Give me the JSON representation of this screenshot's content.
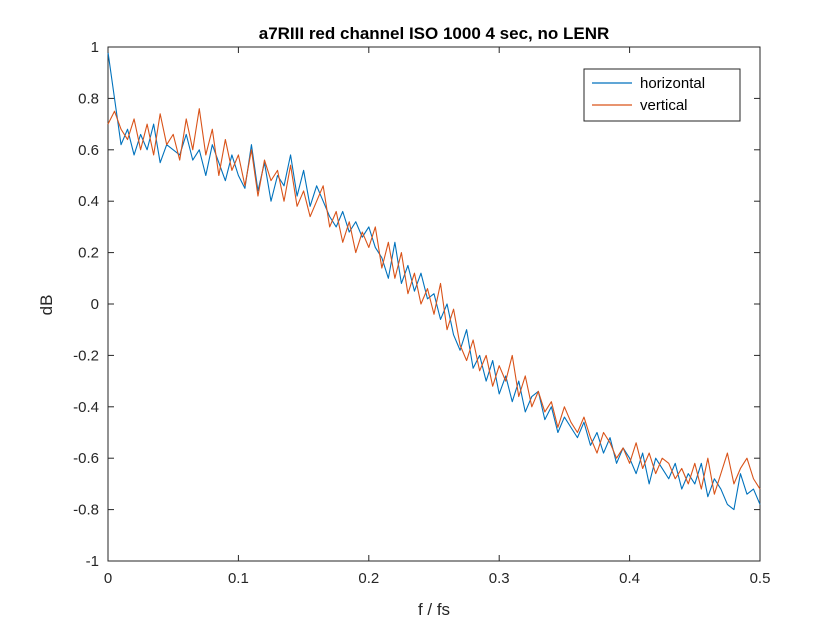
{
  "chart_data": {
    "type": "line",
    "title": "a7RIII red channel ISO 1000 4 sec, no LENR",
    "xlabel": "f / fs",
    "ylabel": "dB",
    "xlim": [
      0,
      0.5
    ],
    "ylim": [
      -1,
      1
    ],
    "xticks": [
      0,
      0.1,
      0.2,
      0.3,
      0.4,
      0.5
    ],
    "xtick_labels": [
      "0",
      "0.1",
      "0.2",
      "0.3",
      "0.4",
      "0.5"
    ],
    "yticks": [
      -1,
      -0.8,
      -0.6,
      -0.4,
      -0.2,
      0,
      0.2,
      0.4,
      0.6,
      0.8,
      1
    ],
    "ytick_labels": [
      "-1",
      "-0.8",
      "-0.6",
      "-0.4",
      "-0.2",
      "0",
      "0.2",
      "0.4",
      "0.6",
      "0.8",
      "1"
    ],
    "grid": false,
    "legend_position": "top-right",
    "x": [
      0,
      0.005,
      0.01,
      0.015,
      0.02,
      0.025,
      0.03,
      0.035,
      0.04,
      0.045,
      0.05,
      0.055,
      0.06,
      0.065,
      0.07,
      0.075,
      0.08,
      0.085,
      0.09,
      0.095,
      0.1,
      0.105,
      0.11,
      0.115,
      0.12,
      0.125,
      0.13,
      0.135,
      0.14,
      0.145,
      0.15,
      0.155,
      0.16,
      0.165,
      0.17,
      0.175,
      0.18,
      0.185,
      0.19,
      0.195,
      0.2,
      0.205,
      0.21,
      0.215,
      0.22,
      0.225,
      0.23,
      0.235,
      0.24,
      0.245,
      0.25,
      0.255,
      0.26,
      0.265,
      0.27,
      0.275,
      0.28,
      0.285,
      0.29,
      0.295,
      0.3,
      0.305,
      0.31,
      0.315,
      0.32,
      0.325,
      0.33,
      0.335,
      0.34,
      0.345,
      0.35,
      0.355,
      0.36,
      0.365,
      0.37,
      0.375,
      0.38,
      0.385,
      0.39,
      0.395,
      0.4,
      0.405,
      0.41,
      0.415,
      0.42,
      0.425,
      0.43,
      0.435,
      0.44,
      0.445,
      0.45,
      0.455,
      0.46,
      0.465,
      0.47,
      0.475,
      0.48,
      0.485,
      0.49,
      0.495,
      0.5
    ],
    "series": [
      {
        "name": "horizontal",
        "color": "#0072BD",
        "values": [
          0.98,
          0.8,
          0.62,
          0.68,
          0.58,
          0.66,
          0.6,
          0.7,
          0.55,
          0.62,
          0.6,
          0.58,
          0.66,
          0.56,
          0.6,
          0.5,
          0.62,
          0.55,
          0.48,
          0.58,
          0.5,
          0.45,
          0.62,
          0.44,
          0.55,
          0.4,
          0.5,
          0.46,
          0.58,
          0.42,
          0.52,
          0.38,
          0.46,
          0.4,
          0.34,
          0.3,
          0.36,
          0.28,
          0.32,
          0.26,
          0.3,
          0.22,
          0.18,
          0.1,
          0.24,
          0.08,
          0.15,
          0.05,
          0.12,
          0.02,
          0.04,
          -0.06,
          0.0,
          -0.12,
          -0.18,
          -0.1,
          -0.25,
          -0.2,
          -0.3,
          -0.22,
          -0.35,
          -0.28,
          -0.38,
          -0.3,
          -0.42,
          -0.36,
          -0.34,
          -0.45,
          -0.4,
          -0.5,
          -0.44,
          -0.48,
          -0.52,
          -0.46,
          -0.55,
          -0.5,
          -0.58,
          -0.52,
          -0.62,
          -0.56,
          -0.6,
          -0.66,
          -0.58,
          -0.7,
          -0.6,
          -0.64,
          -0.68,
          -0.62,
          -0.72,
          -0.66,
          -0.7,
          -0.62,
          -0.75,
          -0.68,
          -0.72,
          -0.78,
          -0.8,
          -0.66,
          -0.74,
          -0.72,
          -0.78
        ]
      },
      {
        "name": "vertical",
        "color": "#D95319",
        "values": [
          0.7,
          0.75,
          0.68,
          0.64,
          0.72,
          0.6,
          0.7,
          0.58,
          0.74,
          0.62,
          0.66,
          0.56,
          0.72,
          0.6,
          0.76,
          0.58,
          0.68,
          0.5,
          0.64,
          0.52,
          0.58,
          0.46,
          0.6,
          0.42,
          0.56,
          0.48,
          0.52,
          0.4,
          0.54,
          0.38,
          0.44,
          0.34,
          0.4,
          0.46,
          0.3,
          0.36,
          0.24,
          0.32,
          0.2,
          0.28,
          0.22,
          0.3,
          0.14,
          0.24,
          0.1,
          0.2,
          0.04,
          0.12,
          0.0,
          0.06,
          -0.04,
          0.08,
          -0.1,
          -0.02,
          -0.16,
          -0.22,
          -0.14,
          -0.26,
          -0.2,
          -0.32,
          -0.24,
          -0.3,
          -0.2,
          -0.36,
          -0.28,
          -0.4,
          -0.34,
          -0.42,
          -0.38,
          -0.48,
          -0.4,
          -0.46,
          -0.5,
          -0.44,
          -0.52,
          -0.58,
          -0.5,
          -0.54,
          -0.6,
          -0.56,
          -0.62,
          -0.54,
          -0.64,
          -0.58,
          -0.66,
          -0.6,
          -0.62,
          -0.68,
          -0.64,
          -0.7,
          -0.62,
          -0.72,
          -0.6,
          -0.74,
          -0.66,
          -0.58,
          -0.7,
          -0.64,
          -0.6,
          -0.68,
          -0.72
        ]
      }
    ]
  }
}
